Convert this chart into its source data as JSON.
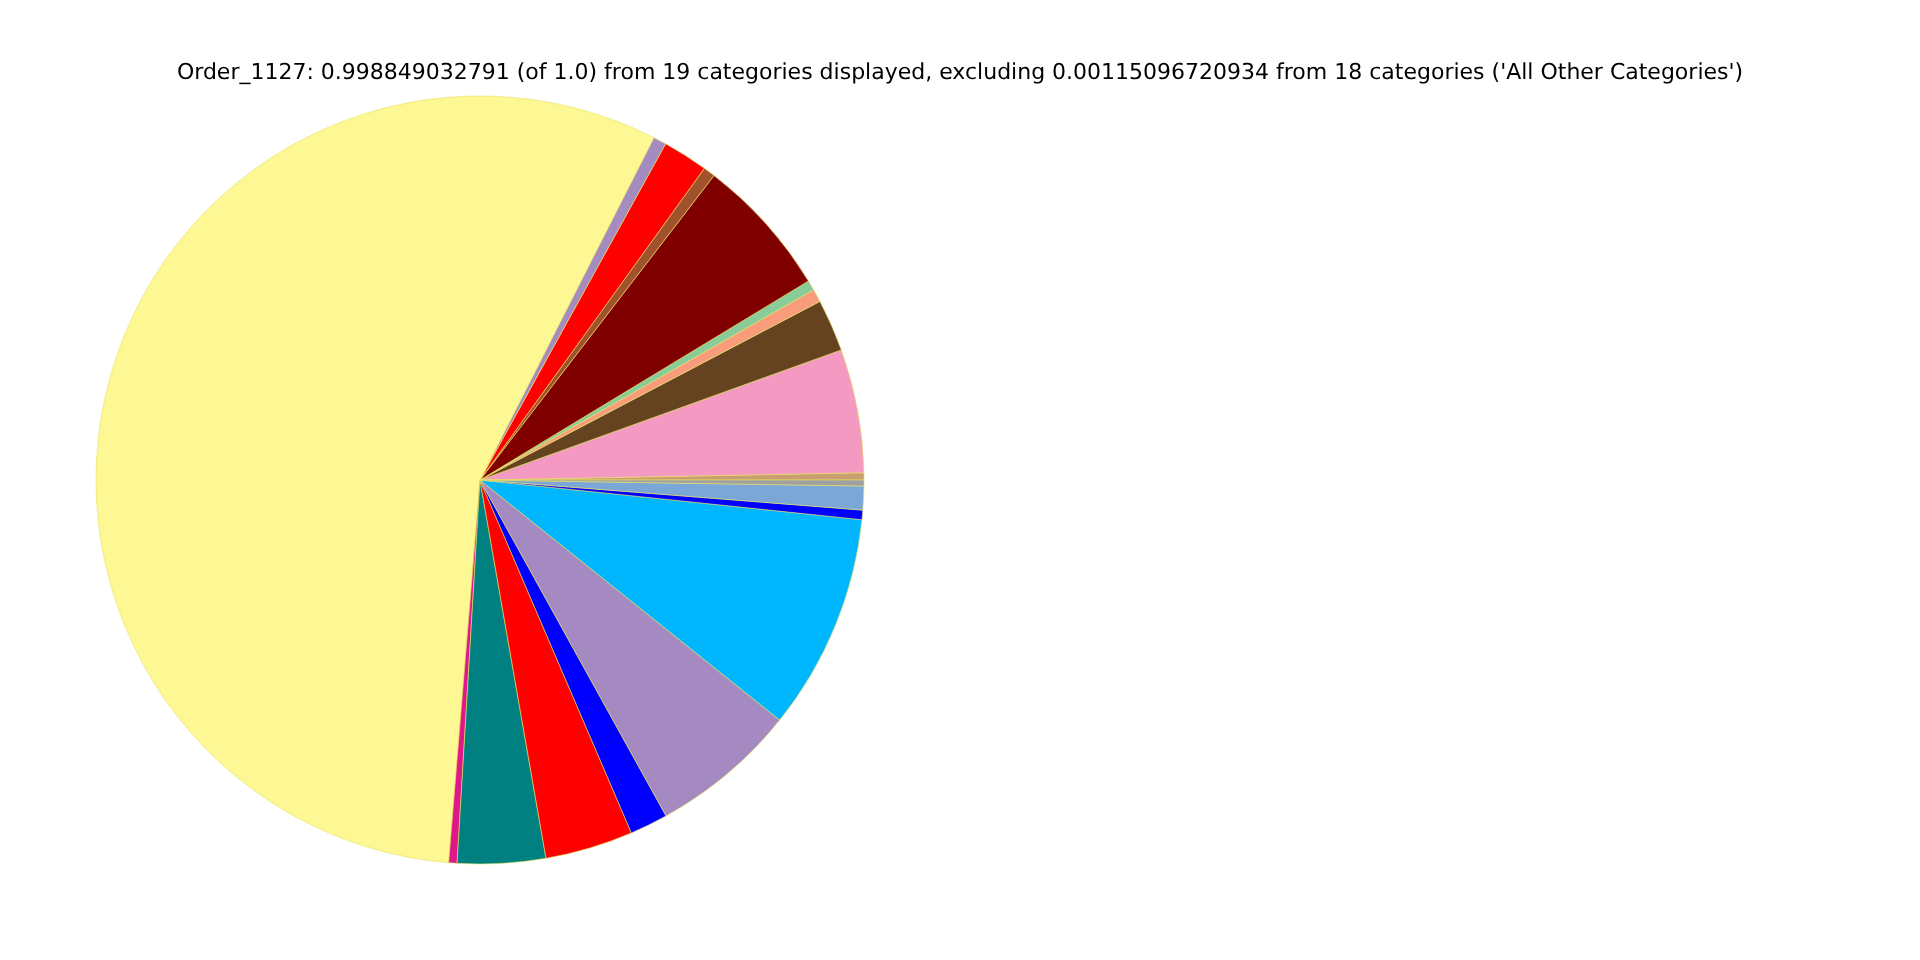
{
  "chart_data": {
    "type": "pie",
    "title": "Order_1127: 0.998849032791 (of 1.0) from 19 categories displayed, excluding 0.00115096720934 from 18 categories ('All Other Categories')",
    "categories": [
      null,
      null,
      null,
      null,
      null,
      null,
      null,
      null,
      null,
      null,
      null,
      null,
      null,
      null,
      null,
      null,
      null,
      null,
      null
    ],
    "values": [
      0.3,
      5.2,
      2.2,
      0.55,
      0.42,
      5.9,
      0.5,
      1.9,
      0.55,
      56.18,
      0.35,
      3.7,
      3.7,
      1.6,
      6.2,
      9.1,
      0.4,
      1.0,
      0.25
    ],
    "colors": [
      "#c8a070",
      "#f49ac2",
      "#654321",
      "#f89c7c",
      "#88cc99",
      "#800000",
      "#a0522d",
      "#ff0000",
      "#a48bc0",
      "#fdf794",
      "#e0168a",
      "#008080",
      "#ff0000",
      "#0000ff",
      "#a589c1",
      "#00b7ff",
      "#0000ff",
      "#7aa7d8",
      "#a0a0a0"
    ]
  }
}
